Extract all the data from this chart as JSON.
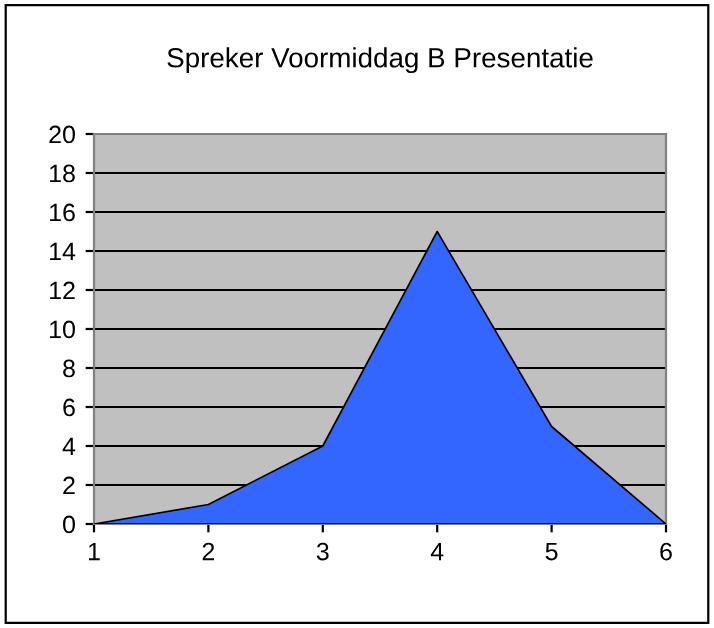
{
  "chart_data": {
    "type": "area",
    "title": "Spreker Voormiddag B Presentatie",
    "categories": [
      "1",
      "2",
      "3",
      "4",
      "5",
      "6"
    ],
    "values": [
      0,
      1,
      4,
      15,
      5,
      0
    ],
    "color": "#3366ff",
    "ylim": [
      0,
      20
    ],
    "yticks": [
      0,
      2,
      4,
      6,
      8,
      10,
      12,
      14,
      16,
      18,
      20
    ],
    "grid": "y"
  }
}
